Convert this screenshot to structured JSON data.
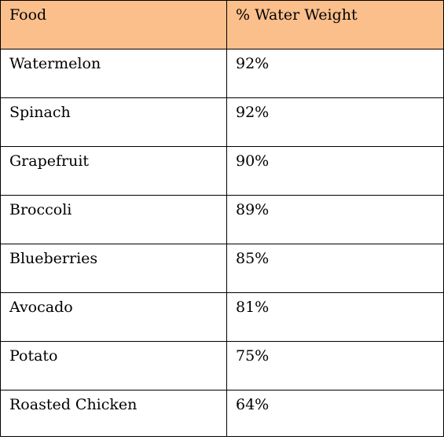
{
  "colors": {
    "header_background": "#FBBF8C",
    "border": "#000000",
    "text": "#000000"
  },
  "table": {
    "columns": [
      "Food",
      "% Water Weight"
    ],
    "rows": [
      [
        "Watermelon",
        "92%"
      ],
      [
        "Spinach",
        "92%"
      ],
      [
        "Grapefruit",
        "90%"
      ],
      [
        "Broccoli",
        "89%"
      ],
      [
        "Blueberries",
        "85%"
      ],
      [
        "Avocado",
        "81%"
      ],
      [
        "Potato",
        "75%"
      ],
      [
        "Roasted Chicken",
        "64%"
      ]
    ]
  }
}
